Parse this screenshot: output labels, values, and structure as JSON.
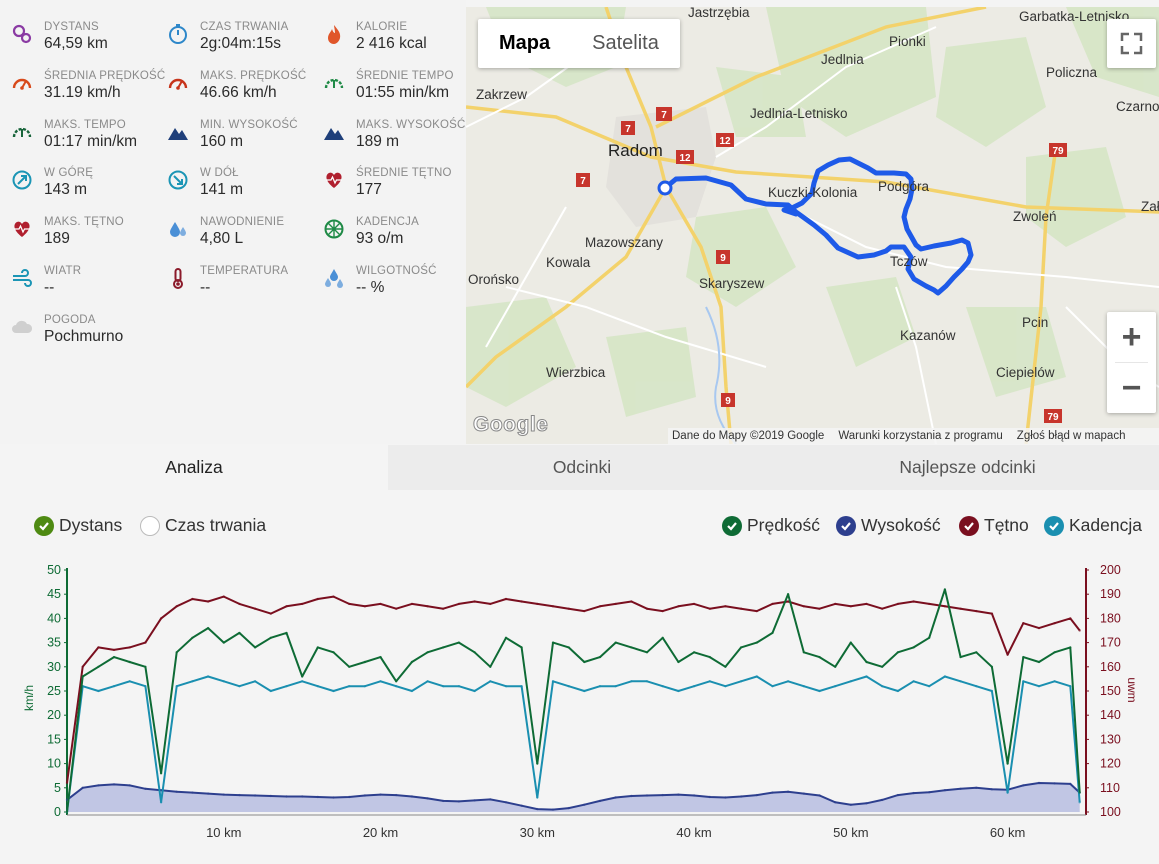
{
  "stats": [
    {
      "label": "DYSTANS",
      "value": "64,59 km",
      "icon": "distance-pin-icon",
      "color": "#8a3aa3"
    },
    {
      "label": "CZAS TRWANIA",
      "value": "2g:04m:15s",
      "icon": "stopwatch-icon",
      "color": "#2d87c9"
    },
    {
      "label": "KALORIE",
      "value": "2 416 kcal",
      "icon": "flame-icon",
      "color": "#e0562a"
    },
    {
      "label": "ŚREDNIA PRĘDKOŚĆ",
      "value": "31.19 km/h",
      "icon": "speedometer-icon",
      "color": "#d84a1b"
    },
    {
      "label": "MAKS. PRĘDKOŚĆ",
      "value": "46.66 km/h",
      "icon": "speedometer-icon",
      "color": "#c7341b"
    },
    {
      "label": "ŚREDNIE TEMPO",
      "value": "01:55 min/km",
      "icon": "pace-gauge-icon",
      "color": "#1f8a46"
    },
    {
      "label": "MAKS. TEMPO",
      "value": "01:17 min/km",
      "icon": "pace-gauge-icon",
      "color": "#17643a"
    },
    {
      "label": "MIN. WYSOKOŚĆ",
      "value": "160 m",
      "icon": "mountain-icon",
      "color": "#1f3f7a"
    },
    {
      "label": "MAKS. WYSOKOŚĆ",
      "value": "189 m",
      "icon": "mountain-icon",
      "color": "#1f3f7a"
    },
    {
      "label": "W GÓRĘ",
      "value": "143 m",
      "icon": "arrow-up-circle-icon",
      "color": "#1b95b5"
    },
    {
      "label": "W DÓŁ",
      "value": "141 m",
      "icon": "arrow-down-circle-icon",
      "color": "#1b95b5"
    },
    {
      "label": "ŚREDNIE TĘTNO",
      "value": "177",
      "icon": "heart-rate-icon",
      "color": "#b01f2e"
    },
    {
      "label": "MAKS. TĘTNO",
      "value": "189",
      "icon": "heart-rate-icon",
      "color": "#b01f2e"
    },
    {
      "label": "NAWODNIENIE",
      "value": "4,80 L",
      "icon": "water-drops-icon",
      "color": "#4a8fd6"
    },
    {
      "label": "KADENCJA",
      "value": "93 o/m",
      "icon": "cadence-wheel-icon",
      "color": "#1f8a46"
    },
    {
      "label": "WIATR",
      "value": "--",
      "icon": "wind-icon",
      "color": "#1b95b5"
    },
    {
      "label": "TEMPERATURA",
      "value": "--",
      "icon": "thermometer-icon",
      "color": "#8b1a2a"
    },
    {
      "label": "WILGOTNOŚĆ",
      "value": "-- %",
      "icon": "humidity-drops-icon",
      "color": "#4a8fd6"
    },
    {
      "label": "POGODA",
      "value": "Pochmurno",
      "icon": "cloud-icon",
      "color": "#cfcfcf"
    }
  ],
  "map": {
    "toggle": [
      "Mapa",
      "Satelita"
    ],
    "active_toggle": "Mapa",
    "zoom_in": "+",
    "zoom_out": "−",
    "logo": "Google",
    "attribution": [
      "Dane do Mapy ©2019 Google",
      "Warunki korzystania z programu",
      "Zgłoś błąd w mapach"
    ],
    "places": [
      "Jastrzębia",
      "Garbatka-Letnisko",
      "Pionki",
      "Jedlnia",
      "Policzna",
      "Zakrzew",
      "Jedlnia-Letnisko",
      "Czarno",
      "Radom",
      "Kuczki-Kolonia",
      "Podgóra",
      "Zwoleń",
      "Mazowszany",
      "Kowala",
      "Skaryszew",
      "Tczów",
      "Orońsko",
      "Kazanów",
      "Pcin",
      "Wierzbica",
      "Ciepielów",
      "Zał"
    ],
    "road_numbers": [
      "7",
      "12",
      "9",
      "79"
    ]
  },
  "tabs": [
    "Analiza",
    "Odcinki",
    "Najlepsze odcinki"
  ],
  "active_tab": "Analiza",
  "legend": {
    "x_modes": [
      {
        "label": "Dystans",
        "checked": true,
        "color": "#4e8a12"
      },
      {
        "label": "Czas trwania",
        "checked": false
      }
    ],
    "series": [
      {
        "label": "Prędkość",
        "checked": true,
        "color": "#0e6b35"
      },
      {
        "label": "Wysokość",
        "checked": true,
        "color": "#2d3f8e"
      },
      {
        "label": "Tętno",
        "checked": true,
        "color": "#7a0f1f"
      },
      {
        "label": "Kadencja",
        "checked": true,
        "color": "#1a8fb0"
      }
    ]
  },
  "chart_data": {
    "type": "line",
    "x": [
      0,
      1,
      2,
      3,
      4,
      5,
      6,
      7,
      8,
      9,
      10,
      11,
      12,
      13,
      14,
      15,
      16,
      17,
      18,
      19,
      20,
      21,
      22,
      23,
      24,
      25,
      26,
      27,
      28,
      29,
      30,
      31,
      32,
      33,
      34,
      35,
      36,
      37,
      38,
      39,
      40,
      41,
      42,
      43,
      44,
      45,
      46,
      47,
      48,
      49,
      50,
      51,
      52,
      53,
      54,
      55,
      56,
      57,
      58,
      59,
      60,
      61,
      62,
      63,
      64,
      64.6
    ],
    "x_ticks": [
      "10 km",
      "20 km",
      "30 km",
      "40 km",
      "50 km",
      "60 km"
    ],
    "x_tick_values": [
      10,
      20,
      30,
      40,
      50,
      60
    ],
    "xlim": [
      0,
      65
    ],
    "y_left": {
      "ticks": [
        "50",
        "45",
        "40",
        "35",
        "30",
        "25",
        "20",
        "15",
        "10",
        "5",
        "0"
      ],
      "label": "km/h",
      "ylim": [
        0,
        50
      ]
    },
    "y_right": {
      "ticks": [
        "200",
        "190",
        "180",
        "170",
        "160",
        "150",
        "140",
        "130",
        "120",
        "110",
        "100"
      ],
      "label": "uwm",
      "ylim": [
        100,
        200
      ]
    },
    "series": [
      {
        "name": "Prędkość",
        "axis": "left",
        "color": "#0e6b35",
        "values": [
          0,
          28,
          30,
          32,
          31,
          30,
          8,
          33,
          36,
          38,
          35,
          37,
          34,
          36,
          37,
          28,
          34,
          33,
          30,
          31,
          32,
          27,
          31,
          33,
          34,
          35,
          33,
          30,
          36,
          34,
          10,
          35,
          34,
          31,
          32,
          35,
          34,
          33,
          36,
          31,
          33,
          32,
          30,
          34,
          35,
          37,
          45,
          33,
          32,
          30,
          35,
          31,
          30,
          33,
          34,
          36,
          46,
          32,
          33,
          30,
          10,
          32,
          31,
          33,
          34,
          4
        ]
      },
      {
        "name": "Wysokość",
        "axis": "left",
        "color": "#2d3f8e",
        "values": [
          2.5,
          5,
          5.5,
          5.7,
          5.5,
          4.8,
          4.5,
          4.2,
          4,
          3.8,
          3.6,
          3.5,
          3.4,
          3.3,
          3.2,
          3.2,
          3.1,
          3,
          3.1,
          3.4,
          3.6,
          3.5,
          3.2,
          2.8,
          2.3,
          2.2,
          2.4,
          2.6,
          2,
          1.3,
          0.6,
          0.5,
          0.8,
          1.5,
          2.3,
          3,
          3.3,
          3.4,
          3.5,
          3.6,
          3.4,
          3.1,
          3,
          3.2,
          3.5,
          4,
          4.2,
          3.8,
          3.4,
          2,
          1.5,
          1.8,
          2.5,
          3.5,
          3.9,
          4.1,
          4.5,
          4.8,
          5,
          4.7,
          4.6,
          5.5,
          6,
          5.9,
          5.8,
          4
        ]
      },
      {
        "name": "Tętno",
        "axis": "right",
        "color": "#7a0f1f",
        "values": [
          112,
          160,
          168,
          167,
          168,
          170,
          180,
          185,
          188,
          187,
          189,
          186,
          184,
          182,
          185,
          186,
          188,
          189,
          186,
          185,
          186,
          184,
          186,
          185,
          184,
          186,
          187,
          186,
          188,
          187,
          186,
          185,
          184,
          183,
          185,
          186,
          187,
          184,
          183,
          185,
          186,
          184,
          185,
          184,
          183,
          186,
          187,
          185,
          184,
          186,
          185,
          186,
          184,
          186,
          187,
          186,
          185,
          184,
          183,
          182,
          165,
          178,
          176,
          178,
          180,
          175
        ]
      },
      {
        "name": "Kadencja",
        "axis": "left",
        "color": "#1a8fb0",
        "values": [
          0,
          26,
          25,
          26,
          27,
          26,
          2,
          26,
          27,
          28,
          27,
          26,
          27,
          25,
          26,
          27,
          26,
          25,
          26,
          26,
          27,
          26,
          25,
          27,
          26,
          26,
          25,
          27,
          26,
          26,
          3,
          27,
          26,
          25,
          26,
          26,
          27,
          27,
          26,
          25,
          26,
          27,
          26,
          27,
          28,
          26,
          27,
          26,
          25,
          26,
          27,
          28,
          26,
          25,
          27,
          26,
          28,
          27,
          26,
          25,
          4,
          27,
          26,
          27,
          26,
          2
        ]
      }
    ]
  }
}
